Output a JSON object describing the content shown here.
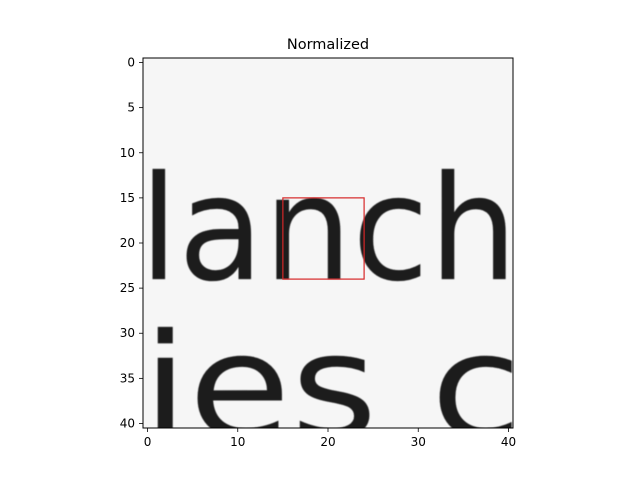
{
  "chart_data": {
    "type": "heatmap",
    "title": "Normalized",
    "xlabel": "",
    "ylabel": "",
    "xlim": [
      -0.5,
      40.5
    ],
    "ylim": [
      40.5,
      -0.5
    ],
    "y_inverted": true,
    "grid": false,
    "colormap": "gray",
    "x_ticks": [
      "0",
      "10",
      "20",
      "30",
      "40"
    ],
    "y_ticks": [
      "0",
      "5",
      "10",
      "15",
      "20",
      "25",
      "30",
      "35",
      "40"
    ],
    "highlight_box": {
      "x0": 15,
      "y0": 15,
      "x1": 24,
      "y1": 24,
      "color": "#d62728"
    },
    "image_text": {
      "line1": "lanch",
      "line2": "ies c"
    }
  }
}
